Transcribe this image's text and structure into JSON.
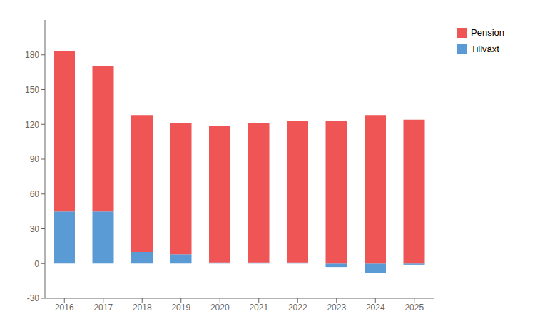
{
  "chart_data": {
    "type": "bar",
    "stacked": true,
    "x": [
      2016,
      2017,
      2018,
      2019,
      2020,
      2021,
      2022,
      2023,
      2024,
      2025
    ],
    "series": [
      {
        "name": "Pension",
        "color": "#f05555",
        "values": [
          138,
          125,
          118,
          113,
          118,
          120,
          122,
          123,
          128,
          124
        ]
      },
      {
        "name": "Tillväxt",
        "color": "#5b9bd5",
        "values": [
          45,
          45,
          10,
          8,
          1,
          1,
          1,
          -3,
          -8,
          -1
        ]
      }
    ],
    "xlim": [
      2015.5,
      2025.5
    ],
    "xticks": [
      2016,
      2017,
      2018,
      2019,
      2020,
      2021,
      2022,
      2023,
      2024,
      2025
    ],
    "ylim": [
      -30,
      210
    ],
    "yticks": [
      -30,
      0,
      30,
      60,
      90,
      120,
      150,
      180
    ],
    "grid": false,
    "legend": "upper right"
  }
}
